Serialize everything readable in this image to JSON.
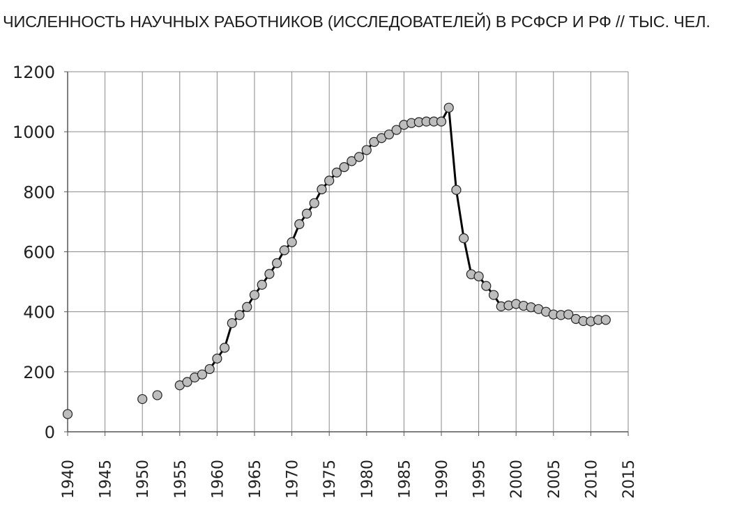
{
  "chart_data": {
    "type": "line",
    "title": "ЧИСЛЕННОСТЬ НАУЧНЫХ РАБОТНИКОВ (ИССЛЕДОВАТЕЛЕЙ) В РСФСР И РФ // ТЫС. ЧЕЛ.",
    "xlabel": "",
    "ylabel": "",
    "xlim": [
      1940,
      2015
    ],
    "ylim": [
      0,
      1200
    ],
    "x_ticks": [
      1940,
      1945,
      1950,
      1955,
      1960,
      1965,
      1970,
      1975,
      1980,
      1985,
      1990,
      1995,
      2000,
      2005,
      2010,
      2015
    ],
    "y_ticks": [
      0,
      200,
      400,
      600,
      800,
      1000,
      1200
    ],
    "grid": true,
    "series": [
      {
        "line_color": "#000000",
        "marker_fill": "#bdbdbd",
        "marker_stroke": "#222222",
        "points": [
          [
            1940,
            59
          ],
          [
            1950,
            109
          ],
          [
            1952,
            122
          ],
          [
            1955,
            155
          ],
          [
            1956,
            166
          ],
          [
            1957,
            181
          ],
          [
            1958,
            191
          ],
          [
            1959,
            209
          ],
          [
            1960,
            244
          ],
          [
            1961,
            280
          ],
          [
            1962,
            362
          ],
          [
            1963,
            389
          ],
          [
            1964,
            416
          ],
          [
            1965,
            456
          ],
          [
            1966,
            490
          ],
          [
            1967,
            526
          ],
          [
            1968,
            562
          ],
          [
            1969,
            605
          ],
          [
            1970,
            632
          ],
          [
            1971,
            692
          ],
          [
            1972,
            727
          ],
          [
            1973,
            762
          ],
          [
            1974,
            808
          ],
          [
            1975,
            837
          ],
          [
            1976,
            864
          ],
          [
            1977,
            882
          ],
          [
            1978,
            902
          ],
          [
            1979,
            916
          ],
          [
            1980,
            939
          ],
          [
            1981,
            966
          ],
          [
            1982,
            979
          ],
          [
            1983,
            991
          ],
          [
            1984,
            1006
          ],
          [
            1985,
            1023
          ],
          [
            1986,
            1029
          ],
          [
            1987,
            1032
          ],
          [
            1988,
            1034
          ],
          [
            1989,
            1034
          ],
          [
            1990,
            1034
          ],
          [
            1991,
            1080
          ],
          [
            1992,
            806
          ],
          [
            1993,
            645
          ],
          [
            1994,
            525
          ],
          [
            1995,
            518
          ],
          [
            1996,
            486
          ],
          [
            1997,
            456
          ],
          [
            1998,
            418
          ],
          [
            1999,
            421
          ],
          [
            2000,
            426
          ],
          [
            2001,
            420
          ],
          [
            2002,
            415
          ],
          [
            2003,
            409
          ],
          [
            2004,
            400
          ],
          [
            2005,
            391
          ],
          [
            2006,
            389
          ],
          [
            2007,
            391
          ],
          [
            2008,
            376
          ],
          [
            2009,
            369
          ],
          [
            2010,
            368
          ],
          [
            2011,
            373
          ],
          [
            2012,
            373
          ]
        ],
        "connected_from": 1955
      }
    ]
  }
}
